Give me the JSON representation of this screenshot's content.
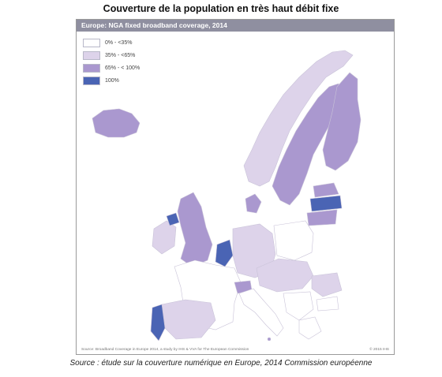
{
  "title": "Couverture de la population en très haut débit fixe",
  "map_header": "Europe: NGA fixed broadband coverage, 2014",
  "legend": [
    {
      "label": "0% - <35%",
      "color": "#ffffff"
    },
    {
      "label": "35% - <65%",
      "color": "#ddd3ea"
    },
    {
      "label": "65% - < 100%",
      "color": "#aa98cf"
    },
    {
      "label": "100%",
      "color": "#4a64b4"
    }
  ],
  "colors": {
    "sea": "#ffffff",
    "border": "#c9c3d8",
    "low": "#ffffff",
    "mid_low": "#ddd3ea",
    "mid_high": "#aa98cf",
    "full": "#4a64b4"
  },
  "footer_note": "Source: Broadband Coverage in Europe 2014, a study by IHS & VVA for The European Commission",
  "footer_copy": "© 2015 IHS",
  "source": "Source : étude sur la couverture numérique en Europe, 2014 Commission européenne"
}
